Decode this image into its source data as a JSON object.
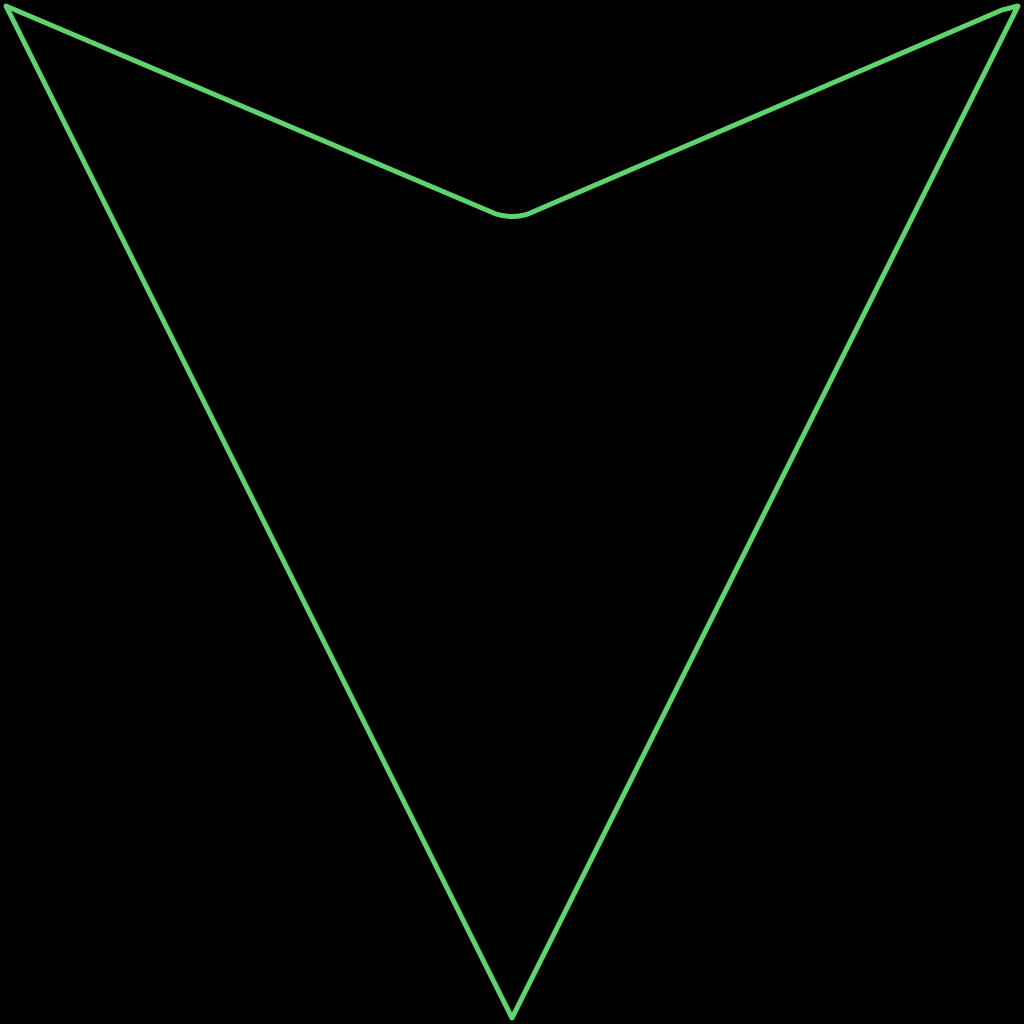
{
  "icon": {
    "name": "arrow-down-outline-icon",
    "stroke_color": "#5fd46e",
    "fill_color": "none",
    "background_color": "#000000"
  }
}
